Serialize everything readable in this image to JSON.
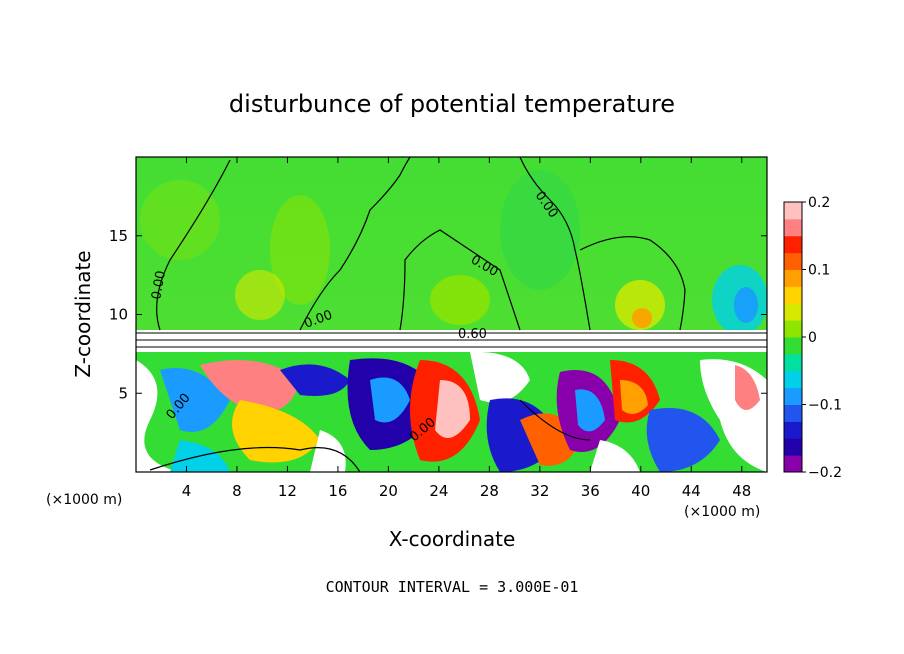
{
  "chart_data": {
    "type": "heatmap",
    "title": "disturbunce of potential temperature",
    "xlabel": "X-coordinate",
    "ylabel": "Z-coordinate",
    "x_unit_left": "(×1000 m)",
    "x_unit_right": "(×1000 m)",
    "xlim": [
      0,
      50
    ],
    "ylim": [
      0,
      20
    ],
    "x_ticks": [
      4,
      8,
      12,
      16,
      20,
      24,
      28,
      32,
      36,
      40,
      44,
      48
    ],
    "y_ticks": [
      5,
      10,
      15
    ],
    "colorbar": {
      "range": [
        -0.2,
        0.2
      ],
      "tick_labels": [
        "0.2",
        "0.1",
        "0",
        "−0.1",
        "−0.2"
      ],
      "tick_values": [
        0.2,
        0.1,
        0,
        -0.1,
        -0.2
      ],
      "colors": [
        "#8800aa",
        "#2200aa",
        "#1a1acc",
        "#2255ee",
        "#1a9bff",
        "#00d0e8",
        "#00e0a0",
        "#33dd33",
        "#8fe400",
        "#d6e800",
        "#ffd200",
        "#ffa000",
        "#ff6000",
        "#ff2000",
        "#ff8080",
        "#ffc0c0"
      ]
    },
    "contour_labels": [
      "0.00",
      "0.00",
      "0.00",
      "0.00",
      "0.00",
      "0.00",
      "0.60"
    ],
    "contour_interval": "CONTOUR INTERVAL = 3.000E-01",
    "grid": false
  }
}
